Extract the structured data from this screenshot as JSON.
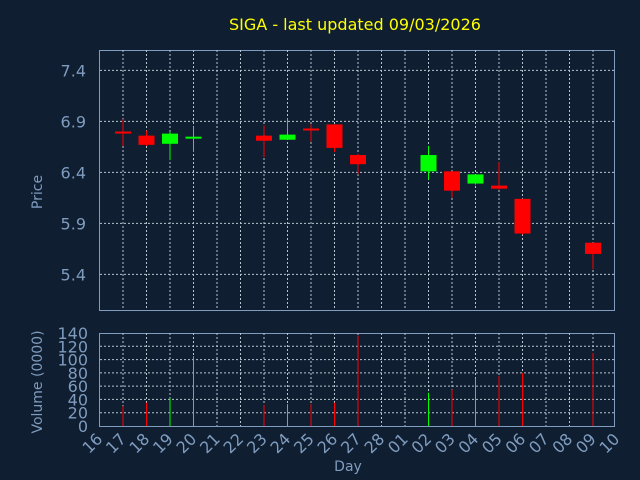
{
  "chart_data": {
    "type": "candlestick",
    "title": "SIGA - last updated 09/03/2026",
    "xlabel": "Day",
    "price_ylabel": "Price",
    "volume_ylabel": "Volume (0000)",
    "price_yticks": [
      5.4,
      5.9,
      6.4,
      6.9,
      7.4
    ],
    "price_ylim": [
      5.05,
      7.6
    ],
    "volume_yticks": [
      0,
      20,
      40,
      60,
      80,
      100,
      120,
      140
    ],
    "volume_ylim": [
      0,
      140
    ],
    "x_ticks": [
      "16",
      "17",
      "18",
      "19",
      "20",
      "21",
      "22",
      "23",
      "24",
      "25",
      "26",
      "27",
      "28",
      "01",
      "02",
      "03",
      "04",
      "05",
      "06",
      "07",
      "08",
      "09",
      "10"
    ],
    "up_color": "#00ff00",
    "down_color": "#ff0000",
    "candles": [
      {
        "day": "17",
        "open": 6.8,
        "close": 6.79,
        "high": 6.92,
        "low": 6.66,
        "volume": 30
      },
      {
        "day": "18",
        "open": 6.76,
        "close": 6.67,
        "high": 6.81,
        "low": 6.66,
        "volume": 35
      },
      {
        "day": "19",
        "open": 6.68,
        "close": 6.78,
        "high": 6.8,
        "low": 6.52,
        "volume": 42
      },
      {
        "day": "20",
        "open": 6.74,
        "close": 6.75,
        "high": 6.85,
        "low": 6.6,
        "volume": 105
      },
      {
        "day": "23",
        "open": 6.76,
        "close": 6.71,
        "high": 6.86,
        "low": 6.55,
        "volume": 32
      },
      {
        "day": "24",
        "open": 6.72,
        "close": 6.77,
        "high": 6.93,
        "low": 6.72,
        "volume": 33
      },
      {
        "day": "25",
        "open": 6.83,
        "close": 6.82,
        "high": 6.87,
        "low": 6.7,
        "volume": 33
      },
      {
        "day": "26",
        "open": 6.87,
        "close": 6.64,
        "high": 6.87,
        "low": 6.6,
        "volume": 35
      },
      {
        "day": "27",
        "open": 6.57,
        "close": 6.48,
        "high": 6.58,
        "low": 6.38,
        "volume": 136
      },
      {
        "day": "02",
        "open": 6.41,
        "close": 6.57,
        "high": 6.66,
        "low": 6.33,
        "volume": 50
      },
      {
        "day": "03",
        "open": 6.41,
        "close": 6.22,
        "high": 6.41,
        "low": 6.15,
        "volume": 55
      },
      {
        "day": "04",
        "open": 6.29,
        "close": 6.38,
        "high": 6.38,
        "low": 6.28,
        "volume": 72
      },
      {
        "day": "05",
        "open": 6.27,
        "close": 6.24,
        "high": 6.5,
        "low": 6.23,
        "volume": 75
      },
      {
        "day": "06",
        "open": 6.14,
        "close": 5.8,
        "high": 6.14,
        "low": 5.79,
        "volume": 80
      },
      {
        "day": "09",
        "open": 5.71,
        "close": 5.6,
        "high": 5.71,
        "low": 5.45,
        "volume": 110
      }
    ]
  }
}
